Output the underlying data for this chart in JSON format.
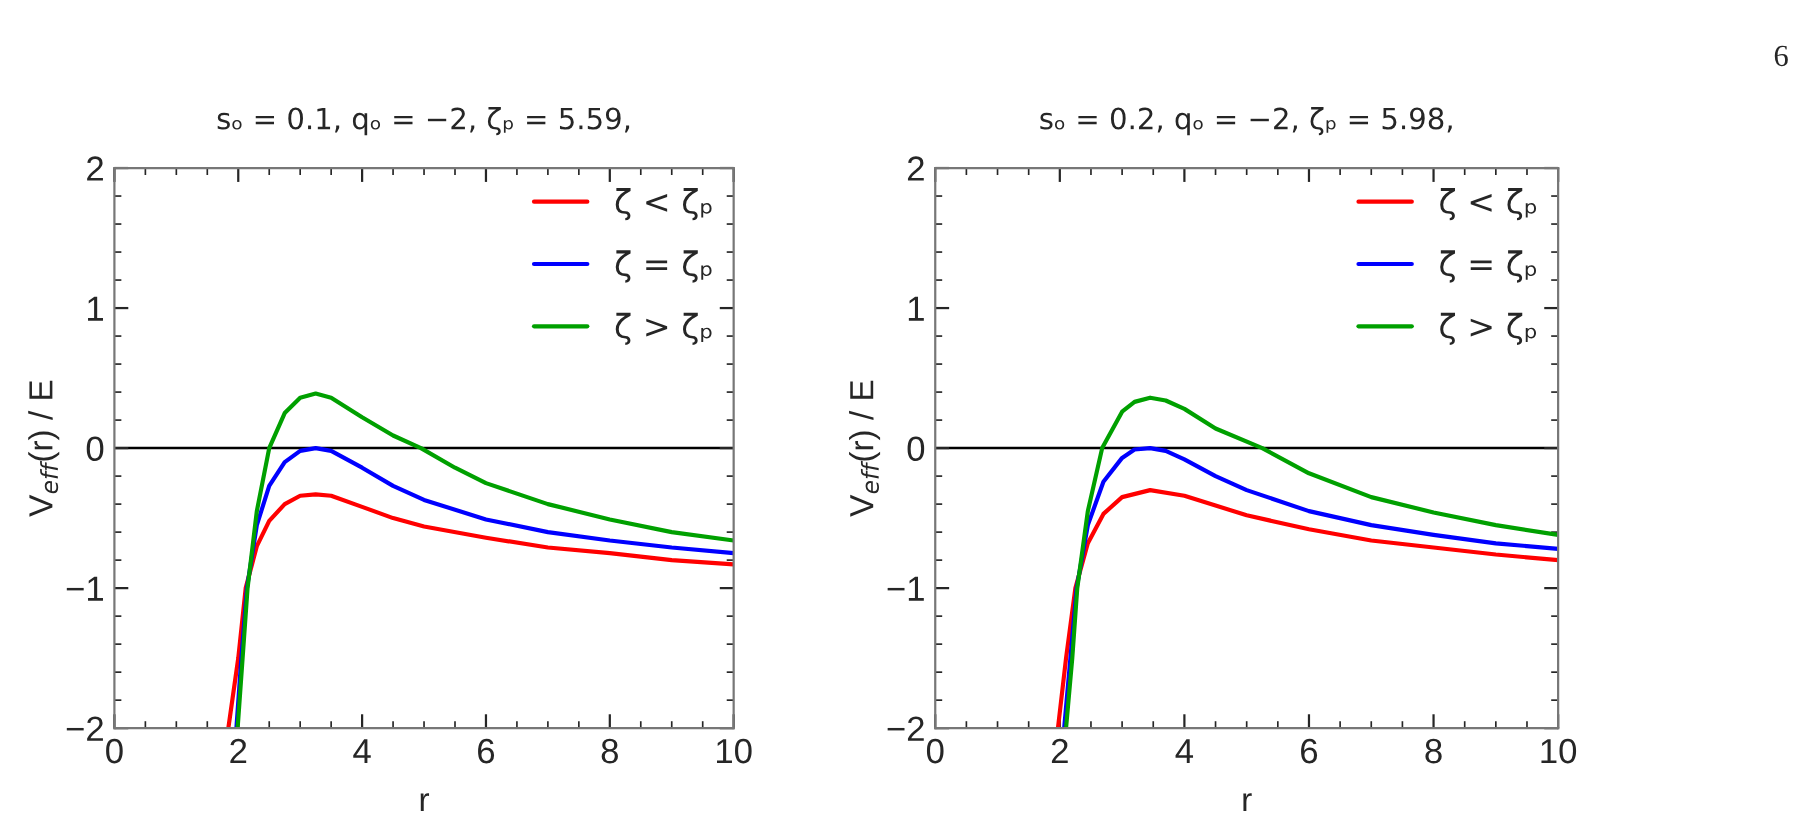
{
  "chart_data": [
    {
      "type": "line",
      "title": "sₒ = 0.1, qₒ = −2, ζₚ = 5.59,",
      "xlabel": "r",
      "ylabel": "V$_{eff}$(r) / E",
      "xlim": [
        0,
        10
      ],
      "ylim": [
        -2,
        2
      ],
      "xticks": [
        0,
        2,
        4,
        6,
        8,
        10
      ],
      "yticks": [
        -2,
        -1,
        0,
        1,
        2
      ],
      "grid": false,
      "legend": "top right",
      "ref_lines": [
        {
          "axis": "y",
          "value": 0,
          "color": "#000000"
        }
      ],
      "annotations": [
        "6"
      ],
      "series": [
        {
          "name": "ζ < ζₚ",
          "color": "#ff0000",
          "x": [
            1.84,
            2.0,
            2.12,
            2.3,
            2.5,
            2.75,
            3.0,
            3.25,
            3.5,
            4,
            4.5,
            5,
            6,
            7,
            8,
            9,
            10
          ],
          "values": [
            -2,
            -1.5,
            -1.0,
            -0.7,
            -0.52,
            -0.4,
            -0.34,
            -0.33,
            -0.34,
            -0.42,
            -0.5,
            -0.56,
            -0.64,
            -0.71,
            -0.75,
            -0.8,
            -0.83
          ]
        },
        {
          "name": "ζ = ζₚ",
          "color": "#0000ff",
          "x": [
            1.97,
            2.05,
            2.14,
            2.3,
            2.5,
            2.75,
            3.0,
            3.25,
            3.5,
            4,
            4.5,
            5,
            6,
            7,
            8,
            9,
            10
          ],
          "values": [
            -2,
            -1.5,
            -1.0,
            -0.55,
            -0.27,
            -0.1,
            -0.02,
            0,
            -0.02,
            -0.14,
            -0.27,
            -0.37,
            -0.51,
            -0.6,
            -0.66,
            -0.71,
            -0.75
          ]
        },
        {
          "name": "ζ > ζₚ",
          "color": "#00a000",
          "x": [
            1.99,
            2.07,
            2.15,
            2.3,
            2.5,
            2.75,
            3.0,
            3.25,
            3.5,
            4,
            4.5,
            4.95,
            5.5,
            6,
            7,
            8,
            9,
            10
          ],
          "values": [
            -2,
            -1.5,
            -1.0,
            -0.45,
            0.0,
            0.25,
            0.36,
            0.39,
            0.36,
            0.22,
            0.09,
            0,
            -0.14,
            -0.25,
            -0.4,
            -0.51,
            -0.6,
            -0.66
          ]
        }
      ]
    },
    {
      "type": "line",
      "title": "sₒ = 0.2, qₒ = −2, ζₚ = 5.98,",
      "xlabel": "r",
      "ylabel": "V$_{eff}$(r) / E",
      "xlim": [
        0,
        10
      ],
      "ylim": [
        -2,
        2
      ],
      "xticks": [
        0,
        2,
        4,
        6,
        8,
        10
      ],
      "yticks": [
        -2,
        -1,
        0,
        1,
        2
      ],
      "grid": false,
      "legend": "top right",
      "ref_lines": [
        {
          "axis": "y",
          "value": 0,
          "color": "#000000"
        }
      ],
      "series": [
        {
          "name": "ζ < ζₚ",
          "color": "#ff0000",
          "x": [
            1.97,
            2.1,
            2.25,
            2.45,
            2.7,
            3.0,
            3.45,
            4,
            4.5,
            5,
            6,
            7,
            8,
            9,
            10
          ],
          "values": [
            -2,
            -1.5,
            -1.0,
            -0.68,
            -0.47,
            -0.35,
            -0.3,
            -0.34,
            -0.41,
            -0.48,
            -0.58,
            -0.66,
            -0.71,
            -0.76,
            -0.8
          ]
        },
        {
          "name": "ζ = ζₚ",
          "color": "#0000ff",
          "x": [
            2.07,
            2.17,
            2.27,
            2.45,
            2.7,
            3.0,
            3.2,
            3.45,
            3.7,
            4,
            4.5,
            5,
            6,
            7,
            8,
            9,
            10
          ],
          "values": [
            -2,
            -1.5,
            -1.0,
            -0.55,
            -0.24,
            -0.07,
            -0.01,
            0,
            -0.02,
            -0.08,
            -0.2,
            -0.3,
            -0.45,
            -0.55,
            -0.62,
            -0.68,
            -0.72
          ]
        },
        {
          "name": "ζ > ζₚ",
          "color": "#00a000",
          "x": [
            2.1,
            2.2,
            2.28,
            2.45,
            2.68,
            3.0,
            3.2,
            3.45,
            3.7,
            4,
            4.5,
            5.25,
            6,
            7,
            8,
            9,
            10
          ],
          "values": [
            -2,
            -1.5,
            -1.0,
            -0.45,
            0,
            0.26,
            0.33,
            0.36,
            0.34,
            0.28,
            0.14,
            0,
            -0.18,
            -0.35,
            -0.46,
            -0.55,
            -0.62
          ]
        }
      ]
    }
  ]
}
